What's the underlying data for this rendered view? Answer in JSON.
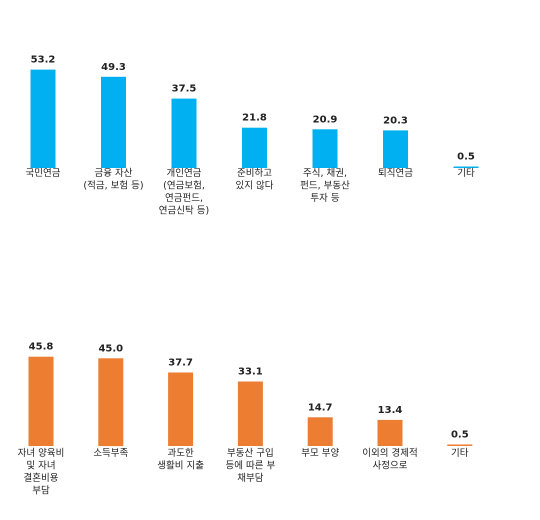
{
  "chart_data": [
    {
      "type": "bar",
      "title": "",
      "xlabel": "",
      "ylabel": "",
      "ylim": [
        0,
        60
      ],
      "color": "#00B0F0",
      "categories": [
        [
          "국민연금"
        ],
        [
          "금융 자산",
          "(적금, 보험 등)"
        ],
        [
          "개인연금",
          "(연금보험,",
          "연금펀드,",
          "연금신탁 등)"
        ],
        [
          "준비하고",
          "있지 않다"
        ],
        [
          "주식, 채권,",
          "펀드, 부동산",
          "투자 등"
        ],
        [
          "퇴직연금"
        ],
        [
          "기타"
        ]
      ],
      "values": [
        53.2,
        49.3,
        37.5,
        21.8,
        20.9,
        20.3,
        0.5
      ],
      "value_labels": [
        "53.2",
        "49.3",
        "37.5",
        "21.8",
        "20.9",
        "20.3",
        "0.5"
      ]
    },
    {
      "type": "bar",
      "title": "",
      "xlabel": "",
      "ylabel": "",
      "ylim": [
        0,
        60
      ],
      "color": "#ED7D31",
      "categories": [
        [
          "자녀 양육비",
          "및 자녀",
          "결혼비용",
          "부담"
        ],
        [
          "소득부족"
        ],
        [
          "과도한",
          "생활비 지출"
        ],
        [
          "부동산 구입",
          "등에 따른 부",
          "채부담"
        ],
        [
          "부모 부양"
        ],
        [
          "이외의 경제적",
          "사정으로"
        ],
        [
          "기타"
        ]
      ],
      "values": [
        45.8,
        45.0,
        37.7,
        33.1,
        14.7,
        13.4,
        0.5
      ],
      "value_labels": [
        "45.8",
        "45.0",
        "37.7",
        "33.1",
        "14.7",
        "13.4",
        "0.5"
      ]
    }
  ]
}
